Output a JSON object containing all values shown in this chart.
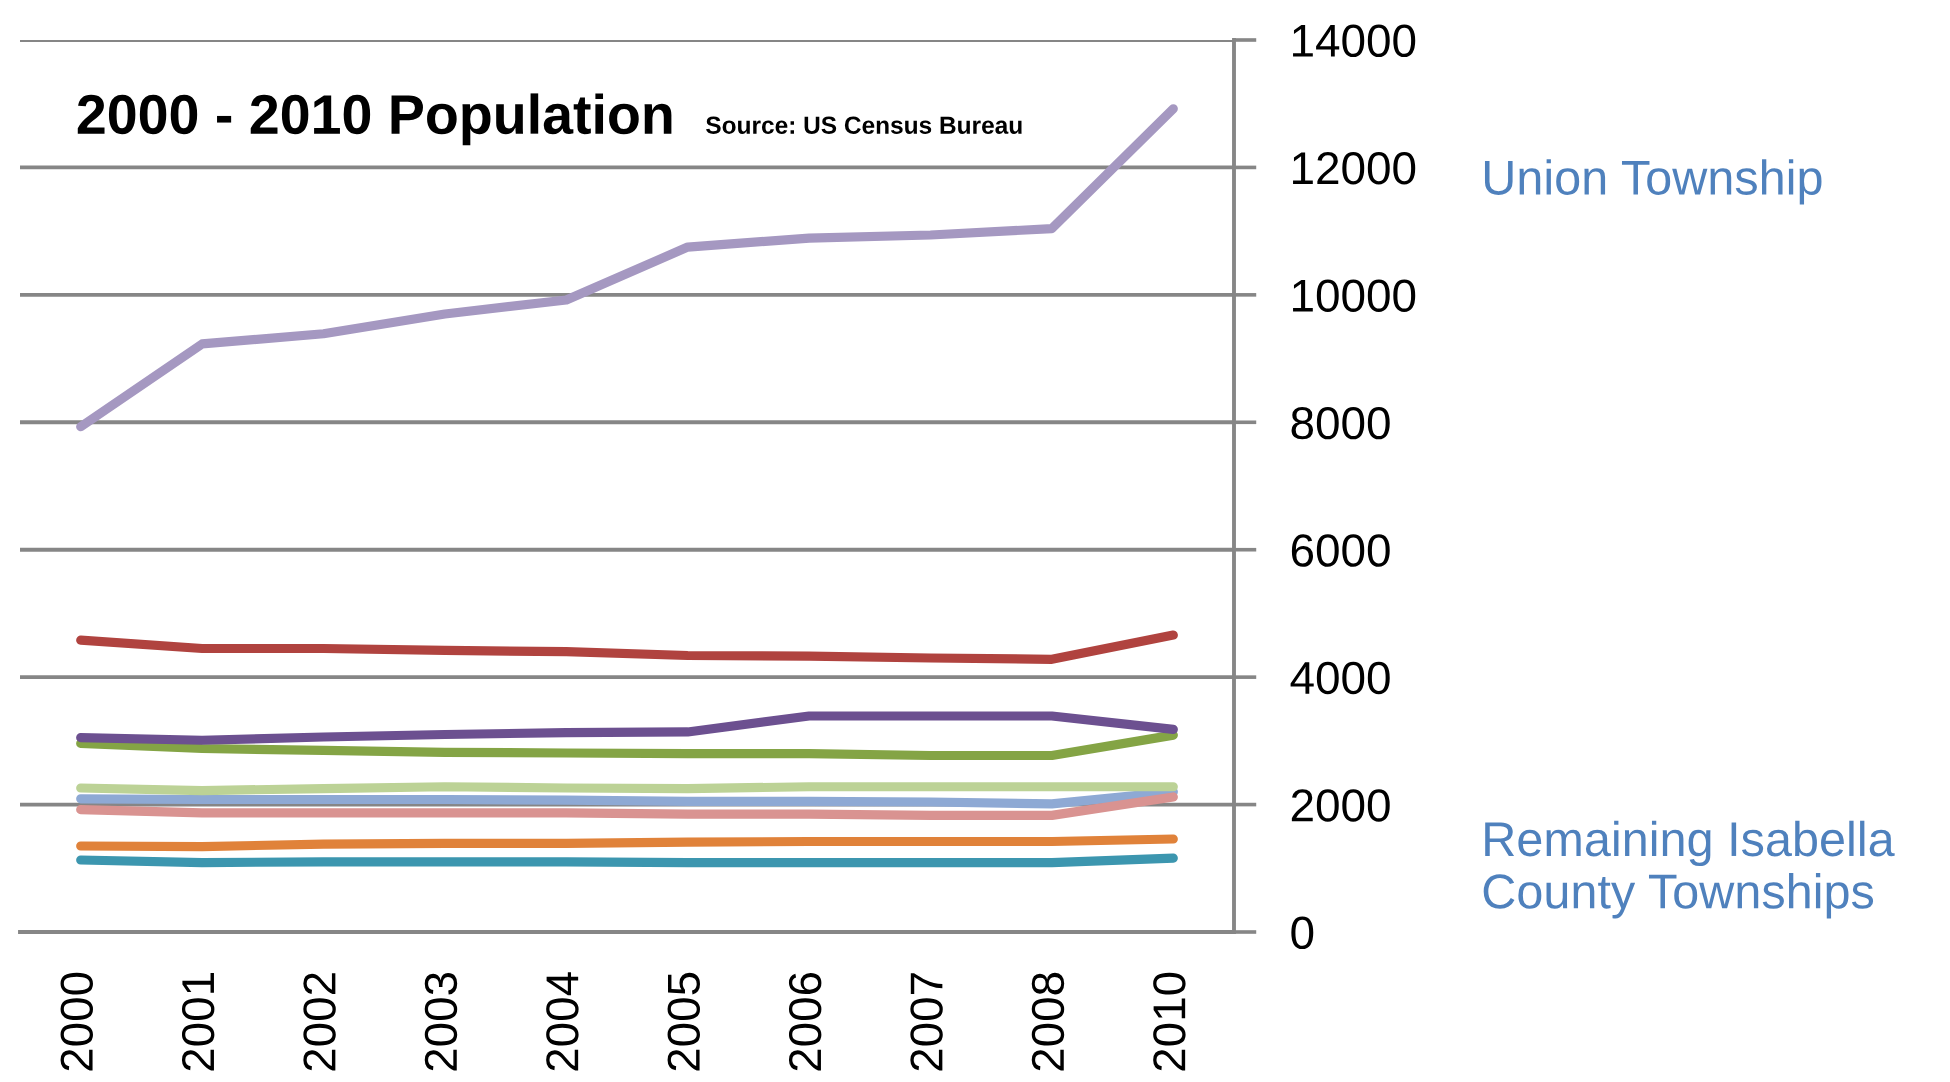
{
  "chart_data": {
    "type": "line",
    "title": "2000 - 2010 Population",
    "annotations": [
      "Source: US Census Bureau",
      "Union Township",
      "Remaining Isabella County Townships"
    ],
    "categories": [
      "2000",
      "2001",
      "2002",
      "2003",
      "2004",
      "2005",
      "2006",
      "2007",
      "2008",
      "2010"
    ],
    "series": [
      {
        "color": "#b0433f",
        "values": [
          4580,
          4450,
          4450,
          4420,
          4400,
          4340,
          4330,
          4300,
          4280,
          4660
        ]
      },
      {
        "color": "#84a445",
        "values": [
          2960,
          2880,
          2850,
          2820,
          2810,
          2800,
          2800,
          2770,
          2770,
          3090
        ]
      },
      {
        "color": "#6c5090",
        "values": [
          3050,
          3010,
          3060,
          3100,
          3130,
          3140,
          3390,
          3390,
          3390,
          3180
        ]
      },
      {
        "color": "#3c96af",
        "values": [
          1130,
          1090,
          1100,
          1100,
          1100,
          1090,
          1090,
          1090,
          1090,
          1160
        ]
      },
      {
        "color": "#e0823a",
        "values": [
          1350,
          1340,
          1380,
          1390,
          1390,
          1410,
          1420,
          1420,
          1420,
          1460
        ]
      },
      {
        "color": "#8ea9d4",
        "values": [
          2090,
          2080,
          2080,
          2080,
          2070,
          2050,
          2050,
          2040,
          2010,
          2200
        ]
      },
      {
        "color": "#d99391",
        "values": [
          1920,
          1870,
          1870,
          1870,
          1870,
          1850,
          1850,
          1830,
          1830,
          2120
        ]
      },
      {
        "color": "#bcd296",
        "values": [
          2260,
          2220,
          2250,
          2280,
          2260,
          2250,
          2280,
          2280,
          2280,
          2280
        ]
      },
      {
        "color": "#a598c1",
        "values": [
          7930,
          9230,
          9390,
          9700,
          9920,
          10750,
          10890,
          10940,
          11040,
          12920
        ]
      }
    ],
    "ylim": [
      0,
      14000
    ],
    "yticks": [
      0,
      2000,
      4000,
      6000,
      8000,
      10000,
      12000,
      14000
    ],
    "grid": "y",
    "marker": "none",
    "line_style": "solid"
  }
}
